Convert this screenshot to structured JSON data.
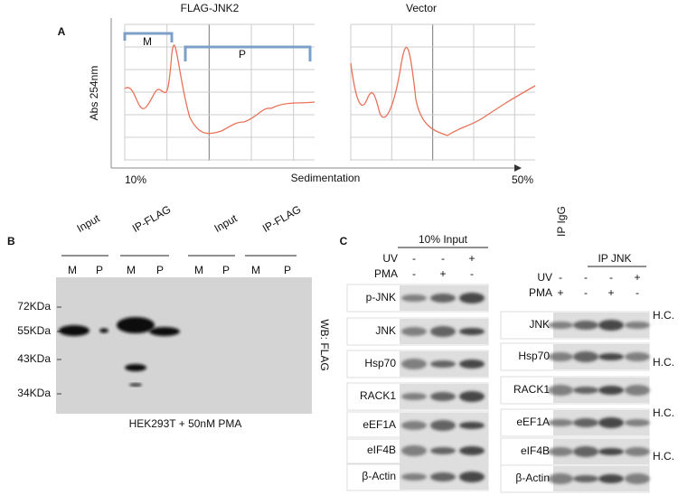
{
  "panel_a": {
    "label": "A",
    "titles": [
      "FLAG-JNK2",
      "Vector"
    ],
    "y_label": "Abs 254nm",
    "x_label": "Sedimentation",
    "x_start": "10%",
    "x_end": "50%",
    "brackets": [
      "M",
      "P"
    ]
  },
  "panel_b": {
    "label": "B",
    "groups": [
      "Input",
      "IP-FLAG",
      "Input",
      "IP-FLAG"
    ],
    "lanes": [
      "M",
      "P",
      "M",
      "P",
      "M",
      "P",
      "M",
      "P"
    ],
    "markers": [
      "72KDa",
      "55KDa",
      "43KDa",
      "34KDa"
    ],
    "wb": "WB: FLAG",
    "caption": "HEK293T + 50nM PMA"
  },
  "panel_c": {
    "label": "C",
    "left": {
      "header": "10% Input",
      "uv_label": "UV",
      "uv": [
        "-",
        "-",
        "+"
      ],
      "pma_label": "PMA",
      "pma": [
        "-",
        "+",
        "-"
      ],
      "rows": [
        "p-JNK",
        "JNK",
        "Hsp70",
        "RACK1",
        "eEF1A",
        "eIF4B",
        "β-Actin"
      ]
    },
    "right": {
      "igg": "IP IgG",
      "header": "IP JNK",
      "uv_label": "UV",
      "uv": [
        "-",
        "-",
        "-",
        "+"
      ],
      "pma_label": "PMA",
      "pma": [
        "+",
        "-",
        "+",
        "-"
      ],
      "rows": [
        "JNK",
        "Hsp70",
        "RACK1",
        "eEF1A",
        "eIF4B",
        "β-Actin"
      ],
      "hc": [
        "H.C.",
        "H.C.",
        "H.C.",
        "H.C."
      ]
    }
  }
}
